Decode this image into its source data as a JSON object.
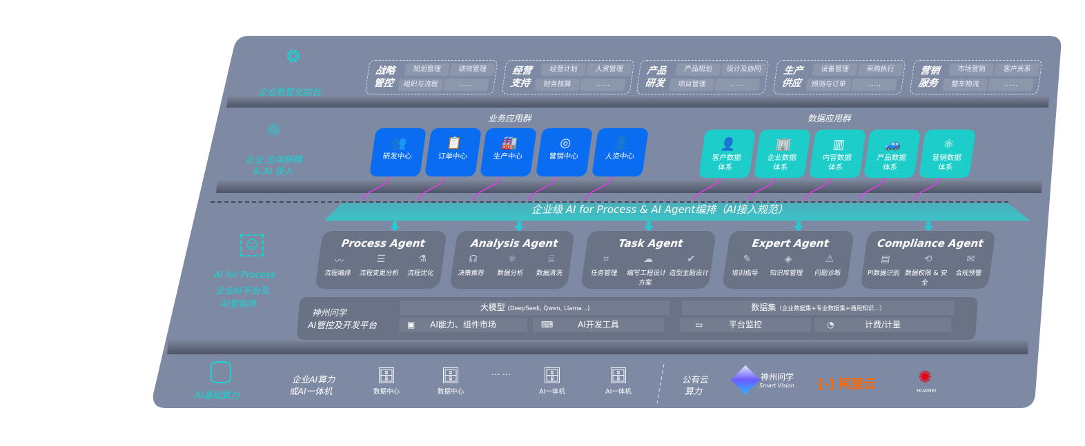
{
  "layers": {
    "front": {
      "label": "企业数智化前台",
      "icon": "brain-icon"
    },
    "apps": {
      "label_line1": "企业 应用解耦",
      "label_line2": "& AI 侵入",
      "icon": "molecule-icon"
    },
    "ai": {
      "label_line1": "AI for Process",
      "label_line2": "企业AI平台及",
      "label_line3": "AI智能体",
      "icon": "face-scan-icon"
    },
    "infra": {
      "label": "AI基础算力",
      "icon": "database-icon"
    }
  },
  "front_groups": [
    {
      "title1": "战略",
      "title2": "管控",
      "items": [
        "规划管理",
        "绩效管理",
        "组织与流程",
        "……"
      ]
    },
    {
      "title1": "经营",
      "title2": "支持",
      "items": [
        "经营计划",
        "人资管理",
        "财务核算",
        "……"
      ]
    },
    {
      "title1": "产品",
      "title2": "研发",
      "items": [
        "产品规划",
        "设计及协同",
        "项目管理",
        "……"
      ]
    },
    {
      "title1": "生产",
      "title2": "供应",
      "items": [
        "设备管理",
        "采购执行",
        "预测与订单",
        "……"
      ]
    },
    {
      "title1": "营销",
      "title2": "服务",
      "items": [
        "市场营销",
        "客户关系",
        "整车物流",
        "……"
      ]
    }
  ],
  "business_apps": {
    "title": "业务应用群",
    "color": "#0a6cf0",
    "items": [
      {
        "label": "研发中心",
        "icon": "team-icon"
      },
      {
        "label": "订单中心",
        "icon": "clipboard-icon"
      },
      {
        "label": "生产中心",
        "icon": "factory-icon"
      },
      {
        "label": "营销中心",
        "icon": "target-icon"
      },
      {
        "label": "人资中心",
        "icon": "person-icon"
      }
    ]
  },
  "data_apps": {
    "title": "数据应用群",
    "color": "#1ccdc9",
    "items": [
      {
        "label": "客户数据体系",
        "icon": "user-icon"
      },
      {
        "label": "企业数据体系",
        "icon": "building-icon"
      },
      {
        "label": "内容数据体系",
        "icon": "books-icon"
      },
      {
        "label": "产品数据体系",
        "icon": "car-icon"
      },
      {
        "label": "营销数据体系",
        "icon": "atom-icon"
      }
    ]
  },
  "banner": "企业级 AI for Process & AI Agent编排（AI接入规范）",
  "agents": [
    {
      "name": "Process Agent",
      "items": [
        "流程编排",
        "流程变更分析",
        "流程优化"
      ]
    },
    {
      "name": "Analysis Agent",
      "items": [
        "决策推荐",
        "数据分析",
        "数据清洗"
      ]
    },
    {
      "name": "Task Agent",
      "items": [
        "任务管理",
        "编写工程设计方案",
        "造型主题设计"
      ]
    },
    {
      "name": "Expert Agent",
      "items": [
        "培训指导",
        "知识库管理",
        "问题诊断"
      ]
    },
    {
      "name": "Compliance Agent",
      "items": [
        "PI数据识别",
        "数据权限 & 安全",
        "合规预警"
      ]
    }
  ],
  "platform": {
    "title1": "神州问学",
    "title2": "AI管控及开发平台",
    "llm": "大模型",
    "llm_note": "(DeepSeek, Qwen, Llama...)",
    "dataset": "数据集",
    "dataset_note": "（企业数据集+专业数据集+通用知识...）",
    "tools": [
      {
        "label": "AI能力、组件市场",
        "icon": "market-icon"
      },
      {
        "label": "AI开发工具",
        "icon": "dev-tool-icon"
      },
      {
        "label": "平台监控",
        "icon": "monitor-icon"
      },
      {
        "label": "计费/计量",
        "icon": "gauge-icon"
      }
    ]
  },
  "infra": {
    "private_line1": "企业AI算力",
    "private_line2": "或AI一体机",
    "servers": [
      "数据中心",
      "数据中心",
      "AI一体机",
      "AI一体机"
    ],
    "ellipsis": "… …",
    "public_line1": "公有云",
    "public_line2": "算力",
    "vendors": {
      "shenzhou": "神州问学",
      "shenzhou_sub": "Smart Vision",
      "aliyun": "阿里云",
      "huawei": "HUAWEI"
    },
    "colors": {
      "aliyun": "#ff6a00",
      "huawei": "#e60012"
    }
  }
}
